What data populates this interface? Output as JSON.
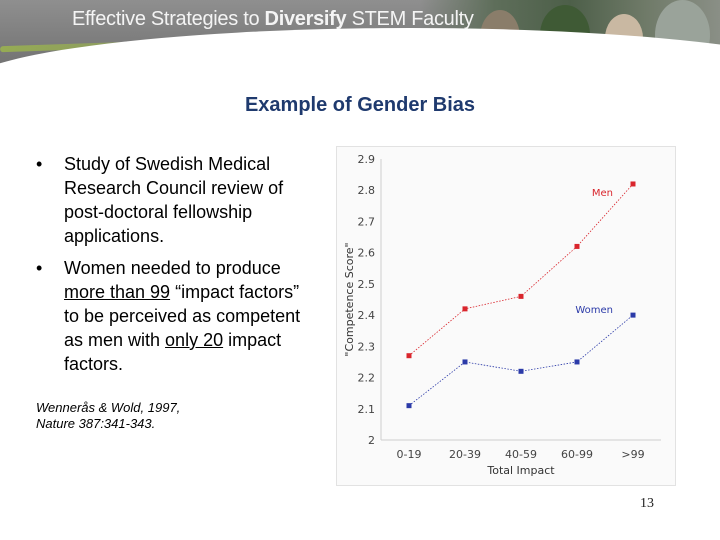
{
  "header": {
    "title_prefix": "Effective Strategies to ",
    "title_bold": "Diversify",
    "title_suffix": " STEM Faculty"
  },
  "slide": {
    "title": "Example of Gender Bias",
    "bullet1": "Study of Swedish Medical Research Council review of post-doctoral fellowship applications.",
    "bullet2_pre": "Women needed to produce ",
    "bullet2_u1": "more than 99",
    "bullet2_mid": " “impact factors” to be perceived as competent as men with ",
    "bullet2_u2": "only 20",
    "bullet2_post": " impact factors.",
    "citation_line1": "Wennerås & Wold, 1997,",
    "citation_line2": "Nature 387:341-343.",
    "page_number": "13"
  },
  "colors": {
    "men": "#d9252c",
    "women": "#2b3aa8",
    "title": "#1f3a6e"
  },
  "chart_data": {
    "type": "line",
    "title": "",
    "xlabel": "Total Impact",
    "ylabel": "\"Competence Score\"",
    "categories": [
      "0-19",
      "20-39",
      "40-59",
      "60-99",
      ">99"
    ],
    "ylim": [
      2,
      2.9
    ],
    "yticks": [
      2,
      2.1,
      2.2,
      2.3,
      2.4,
      2.5,
      2.6,
      2.7,
      2.8,
      2.9
    ],
    "series": [
      {
        "name": "Men",
        "values": [
          2.27,
          2.42,
          2.46,
          2.62,
          2.82
        ]
      },
      {
        "name": "Women",
        "values": [
          2.11,
          2.25,
          2.22,
          2.25,
          2.4
        ]
      }
    ],
    "grid": false
  }
}
